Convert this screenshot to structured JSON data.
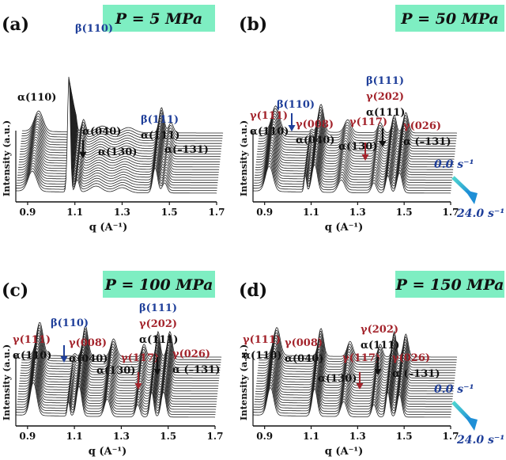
{
  "figure": {
    "y_axis_label": "Intensity (a.u.)",
    "x_axis_label": "q (A⁻¹)",
    "rate_start": "0.0 s⁻¹",
    "rate_end": "24.0 s⁻¹"
  },
  "colors": {
    "banner": "#7eeec2",
    "blue": "#1f3f9a",
    "red": "#a3232b",
    "black": "#111111",
    "arrow_teal": "#2fb0c9"
  },
  "chart_data": [
    {
      "type": "line",
      "panel": "(a)",
      "title": "P = 5 MPa",
      "xlabel": "q (A⁻¹)",
      "ylabel": "Intensity (a.u.)",
      "xlim": [
        0.85,
        1.7
      ],
      "x_ticks": [
        "0.9",
        "1.1",
        "1.3",
        "1.5",
        "1.7"
      ],
      "traces": 24,
      "peaks": [
        {
          "q": 0.92,
          "height": 0.16,
          "width": 0.018
        },
        {
          "q": 1.075,
          "height": 0.92,
          "width": 0.006
        },
        {
          "q": 1.11,
          "height": 0.1,
          "width": 0.008
        },
        {
          "q": 1.19,
          "height": 0.05,
          "width": 0.025
        },
        {
          "q": 1.3,
          "height": 0.04,
          "width": 0.025
        },
        {
          "q": 1.44,
          "height": 0.2,
          "width": 0.01
        },
        {
          "q": 1.48,
          "height": 0.08,
          "width": 0.01
        }
      ],
      "labels": [
        {
          "name": "beta110",
          "lines": [
            {
              "text": "β(110)",
              "color": "blue"
            }
          ]
        },
        {
          "name": "alpha110",
          "lines": [
            {
              "text": "α(110)",
              "color": "black"
            }
          ]
        },
        {
          "name": "alpha040",
          "lines": [
            {
              "text": "α(040)",
              "color": "black"
            }
          ]
        },
        {
          "name": "alpha130",
          "lines": [
            {
              "text": "α(130)",
              "color": "black"
            }
          ]
        },
        {
          "name": "beta111",
          "lines": [
            {
              "text": "β(111)",
              "color": "blue"
            },
            {
              "text": "α(111)",
              "color": "black"
            }
          ]
        },
        {
          "name": "alpha-131",
          "lines": [
            {
              "text": "α(–131)",
              "color": "black"
            }
          ]
        }
      ]
    },
    {
      "type": "line",
      "panel": "(b)",
      "title": "P = 50 MPa",
      "xlabel": "q (A⁻¹)",
      "ylabel": "Intensity (a.u.)",
      "xlim": [
        0.85,
        1.7
      ],
      "x_ticks": [
        "0.9",
        "1.1",
        "1.3",
        "1.5",
        "1.7"
      ],
      "traces": 24,
      "peaks": [
        {
          "q": 0.92,
          "height": 0.2,
          "width": 0.016
        },
        {
          "q": 1.075,
          "height": 0.14,
          "width": 0.005
        },
        {
          "q": 1.115,
          "height": 0.22,
          "width": 0.012
        },
        {
          "q": 1.23,
          "height": 0.1,
          "width": 0.014
        },
        {
          "q": 1.37,
          "height": 0.08,
          "width": 0.01
        },
        {
          "q": 1.43,
          "height": 0.14,
          "width": 0.009
        },
        {
          "q": 1.48,
          "height": 0.16,
          "width": 0.011
        }
      ],
      "labels": [
        {
          "name": "gamma111",
          "lines": [
            {
              "text": "γ(111)",
              "color": "red"
            },
            {
              "text": "α(110)",
              "color": "black"
            }
          ]
        },
        {
          "name": "beta110",
          "lines": [
            {
              "text": "β(110)",
              "color": "blue"
            }
          ]
        },
        {
          "name": "gamma008",
          "lines": [
            {
              "text": "γ(008)",
              "color": "red"
            },
            {
              "text": "α(040)",
              "color": "black"
            }
          ]
        },
        {
          "name": "alpha130",
          "lines": [
            {
              "text": "α(130)",
              "color": "black"
            }
          ]
        },
        {
          "name": "gamma117",
          "lines": [
            {
              "text": "γ(117)",
              "color": "red"
            }
          ]
        },
        {
          "name": "beta111",
          "lines": [
            {
              "text": "β(111)",
              "color": "blue"
            },
            {
              "text": "γ(202)",
              "color": "red"
            },
            {
              "text": "α(111)",
              "color": "black"
            }
          ]
        },
        {
          "name": "gamma026",
          "lines": [
            {
              "text": "γ(026)",
              "color": "red"
            },
            {
              "text": "α (–131)",
              "color": "black"
            }
          ]
        }
      ]
    },
    {
      "type": "line",
      "panel": "(c)",
      "title": "P = 100 MPa",
      "xlabel": "q (A⁻¹)",
      "ylabel": "Intensity (a.u.)",
      "xlim": [
        0.85,
        1.7
      ],
      "x_ticks": [
        "0.9",
        "1.1",
        "1.3",
        "1.5",
        "1.7"
      ],
      "traces": 24,
      "peaks": [
        {
          "q": 0.925,
          "height": 0.26,
          "width": 0.014
        },
        {
          "q": 1.075,
          "height": 0.12,
          "width": 0.005
        },
        {
          "q": 1.12,
          "height": 0.24,
          "width": 0.011
        },
        {
          "q": 1.24,
          "height": 0.14,
          "width": 0.012
        },
        {
          "q": 1.37,
          "height": 0.1,
          "width": 0.009
        },
        {
          "q": 1.43,
          "height": 0.2,
          "width": 0.008
        },
        {
          "q": 1.48,
          "height": 0.2,
          "width": 0.01
        }
      ],
      "labels": [
        {
          "name": "gamma111",
          "lines": [
            {
              "text": "γ(111)",
              "color": "red"
            },
            {
              "text": "α(110)",
              "color": "black"
            }
          ]
        },
        {
          "name": "beta110",
          "lines": [
            {
              "text": "β(110)",
              "color": "blue"
            }
          ]
        },
        {
          "name": "gamma008",
          "lines": [
            {
              "text": "γ(008)",
              "color": "red"
            },
            {
              "text": "α(040)",
              "color": "black"
            }
          ]
        },
        {
          "name": "alpha130",
          "lines": [
            {
              "text": "α(130)",
              "color": "black"
            }
          ]
        },
        {
          "name": "gamma117",
          "lines": [
            {
              "text": "γ(117)",
              "color": "red"
            }
          ]
        },
        {
          "name": "beta111",
          "lines": [
            {
              "text": "β(111)",
              "color": "blue"
            },
            {
              "text": "γ(202)",
              "color": "red"
            },
            {
              "text": "α(111)",
              "color": "black"
            }
          ]
        },
        {
          "name": "gamma026",
          "lines": [
            {
              "text": "γ(026)",
              "color": "red"
            },
            {
              "text": "α (–131)",
              "color": "black"
            }
          ]
        }
      ]
    },
    {
      "type": "line",
      "panel": "(d)",
      "title": "P = 150 MPa",
      "xlabel": "q (A⁻¹)",
      "ylabel": "Intensity (a.u.)",
      "xlim": [
        0.85,
        1.7
      ],
      "x_ticks": [
        "0.9",
        "1.1",
        "1.3",
        "1.5",
        "1.7"
      ],
      "traces": 24,
      "peaks": [
        {
          "q": 0.925,
          "height": 0.22,
          "width": 0.014
        },
        {
          "q": 1.115,
          "height": 0.22,
          "width": 0.011
        },
        {
          "q": 1.24,
          "height": 0.12,
          "width": 0.012
        },
        {
          "q": 1.37,
          "height": 0.1,
          "width": 0.009
        },
        {
          "q": 1.43,
          "height": 0.2,
          "width": 0.008
        },
        {
          "q": 1.48,
          "height": 0.18,
          "width": 0.01
        }
      ],
      "labels": [
        {
          "name": "gamma111",
          "lines": [
            {
              "text": "γ(111)",
              "color": "red"
            },
            {
              "text": "α(110)",
              "color": "black"
            }
          ]
        },
        {
          "name": "gamma008",
          "lines": [
            {
              "text": "γ(008)",
              "color": "red"
            },
            {
              "text": "α(040)",
              "color": "black"
            }
          ]
        },
        {
          "name": "alpha130",
          "lines": [
            {
              "text": "α(130)",
              "color": "black"
            }
          ]
        },
        {
          "name": "gamma117",
          "lines": [
            {
              "text": "γ(117)",
              "color": "red"
            }
          ]
        },
        {
          "name": "gamma202",
          "lines": [
            {
              "text": "γ(202)",
              "color": "red"
            },
            {
              "text": "α(111)",
              "color": "black"
            }
          ]
        },
        {
          "name": "gamma026",
          "lines": [
            {
              "text": "γ(026)",
              "color": "red"
            },
            {
              "text": "α (–131)",
              "color": "black"
            }
          ]
        }
      ]
    }
  ]
}
